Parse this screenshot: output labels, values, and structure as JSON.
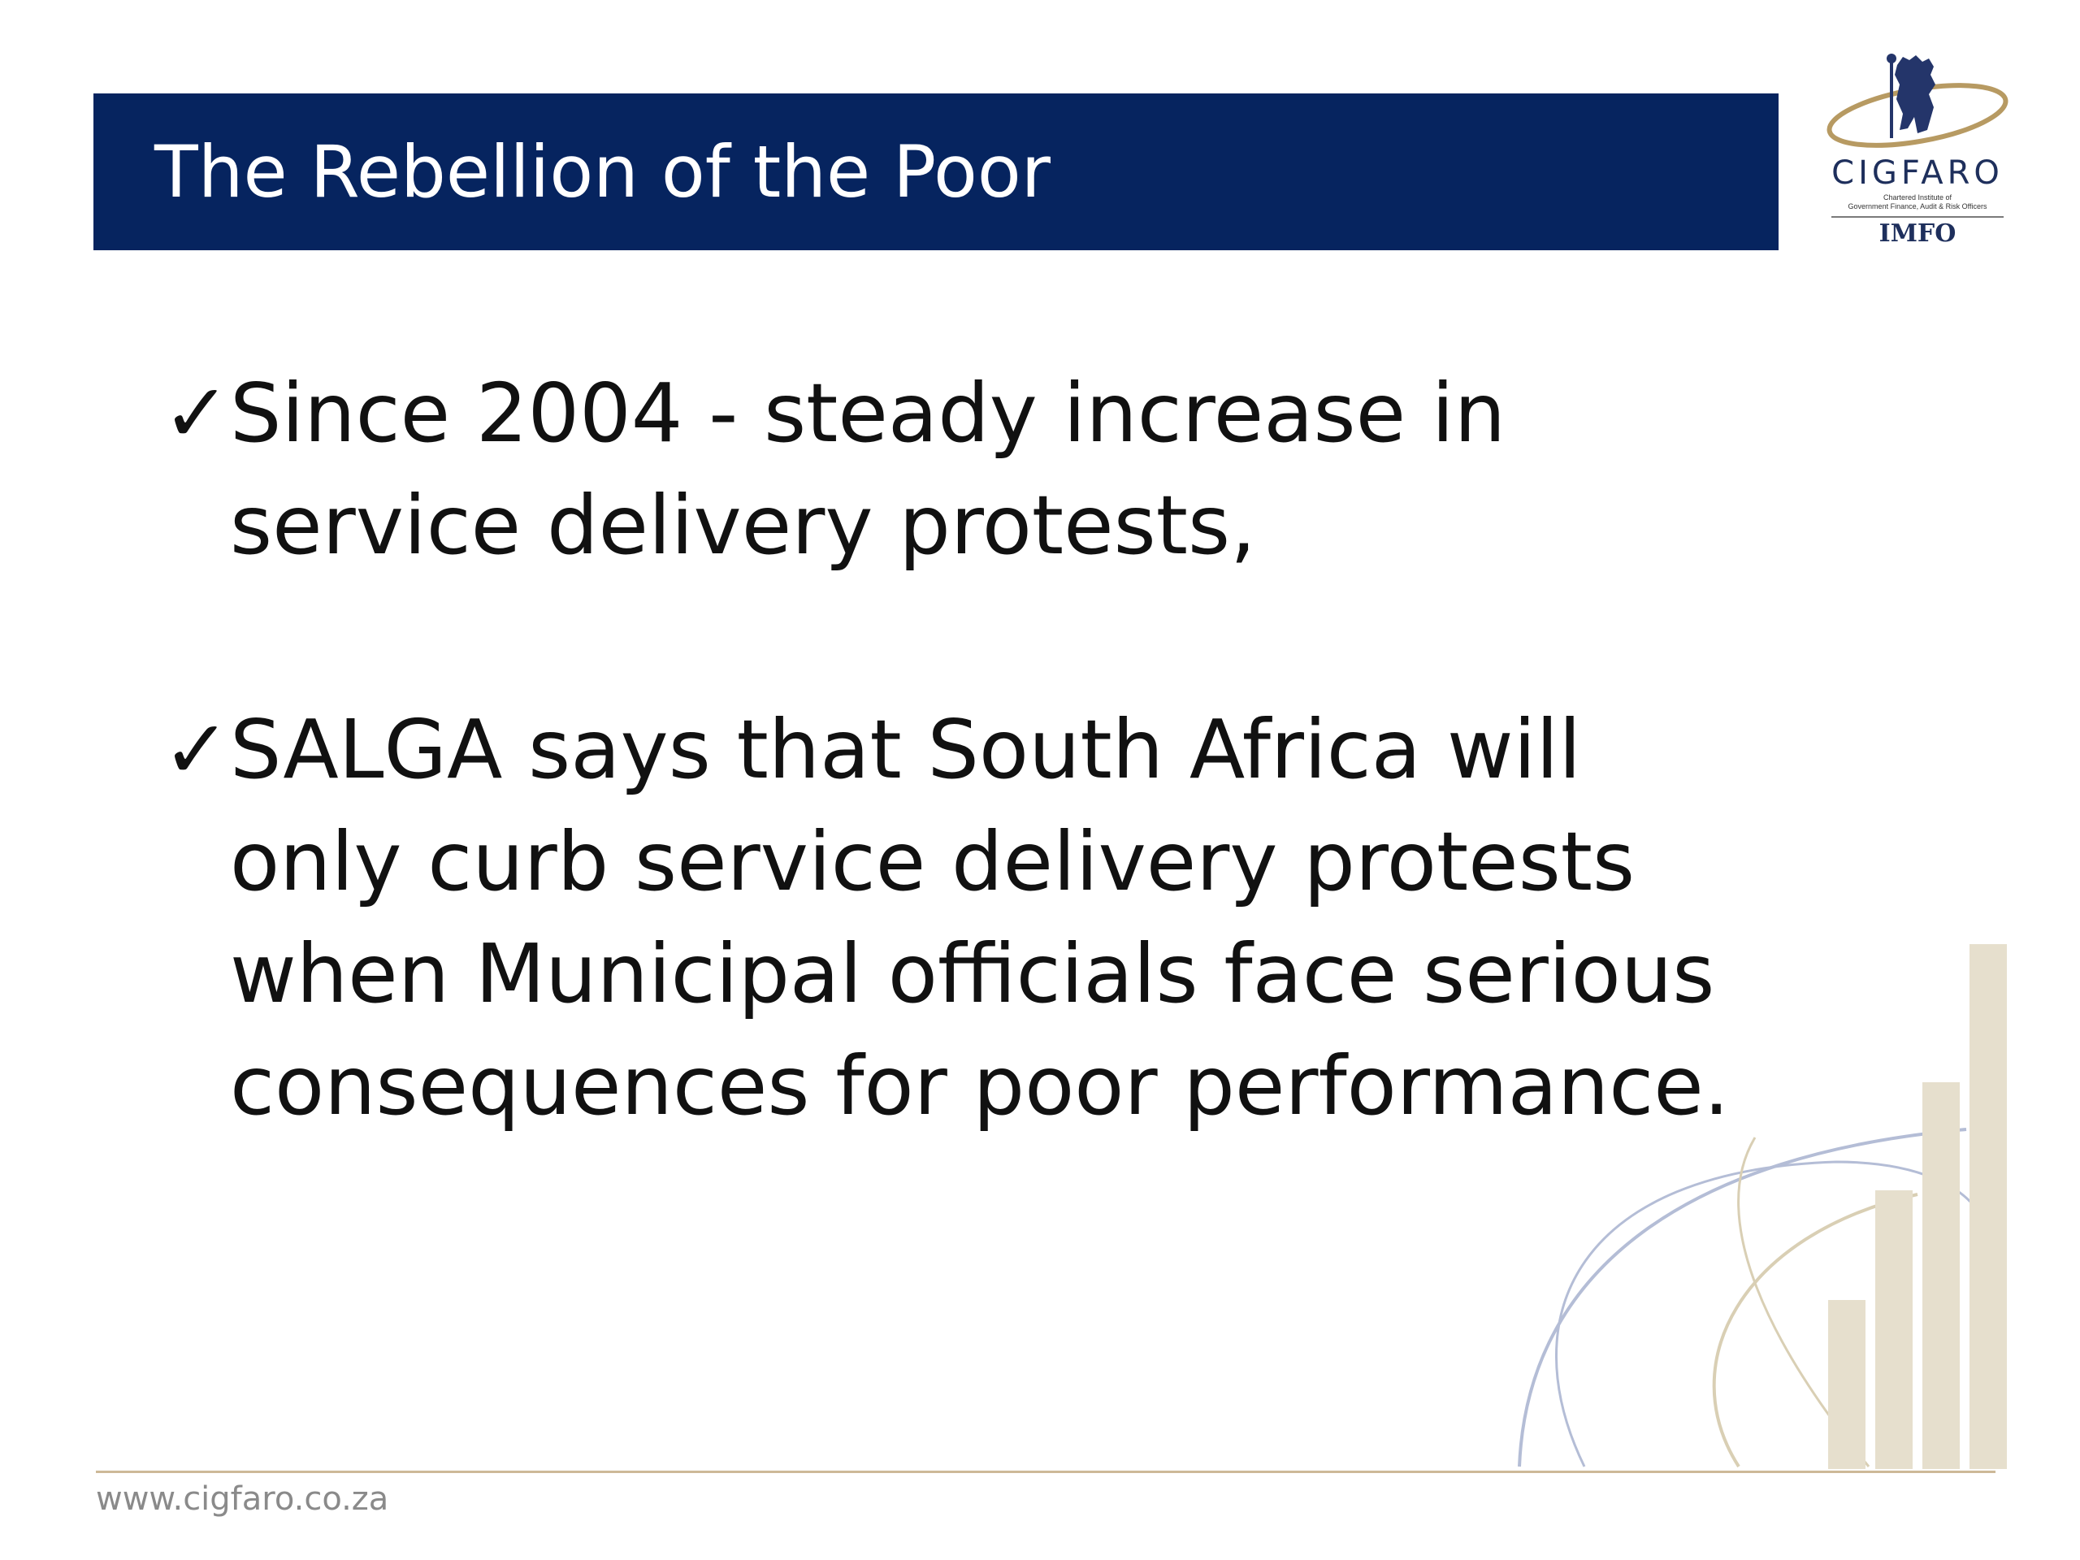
{
  "slide": {
    "title": "The Rebellion of the Poor",
    "bullet_marker": "✓",
    "bullets": [
      {
        "text": "Since 2004 - steady increase in service delivery protests,"
      },
      {
        "text": "SALGA says that South Africa will only curb service delivery protests when Municipal officials face serious consequences for poor performance."
      }
    ]
  },
  "logo": {
    "name": "CIGFARO",
    "subtitle_line1": "Chartered Institute of",
    "subtitle_line2": "Government Finance, Audit & Risk Officers",
    "secondary": "IMFO",
    "icon": "lion-crest-icon"
  },
  "footer": {
    "url": "www.cigfaro.co.za"
  },
  "colors": {
    "title_bar": "#06245f",
    "title_text": "#ffffff",
    "body_text": "#111111",
    "accent_gold": "#cdb998",
    "bar_fill": "#e6dfcd",
    "curve_blue": "#b4bdd6"
  }
}
